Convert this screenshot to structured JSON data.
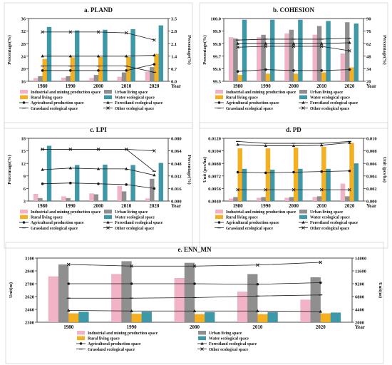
{
  "chart_data": [
    {
      "id": "a",
      "type": "bar",
      "title": "a. PLAND",
      "categories": [
        "1980",
        "1990",
        "2000",
        "2010",
        "2020"
      ],
      "xlabel": "Year",
      "ylabel_left": "Percentage(%)",
      "ylabel_right": "Percentage(%)",
      "ylim_left": [
        16,
        36
      ],
      "yticks_left": [
        16,
        20,
        24,
        28,
        32,
        36
      ],
      "ylim_right": [
        0,
        3.5
      ],
      "yticks_right": [
        0,
        0.7,
        1.4,
        2.1,
        2.8,
        3.5
      ],
      "bar_series": [
        {
          "name": "Industrial and mining production space",
          "values": [
            17.0,
            17.1,
            17.0,
            17.4,
            19.0
          ]
        },
        {
          "name": "Urban living space",
          "values": [
            17.6,
            17.6,
            18.0,
            18.8,
            20.5
          ]
        },
        {
          "name": "Rural living space",
          "values": [
            23.1,
            23.6,
            23.7,
            23.7,
            24.7
          ]
        },
        {
          "name": "Water ecological space",
          "values": [
            33.3,
            32.2,
            32.4,
            32.6,
            33.8
          ]
        }
      ],
      "line_series": [
        {
          "name": "Agricultural production space",
          "axis": "right",
          "values": [
            0.6,
            0.6,
            0.6,
            0.6,
            0.95
          ]
        },
        {
          "name": "Forestland ecological space",
          "axis": "right",
          "values": [
            1.4,
            1.4,
            1.4,
            1.4,
            1.45
          ]
        },
        {
          "name": "Grassland ecological space",
          "axis": "right",
          "values": [
            0.85,
            0.85,
            0.85,
            0.85,
            0.5
          ]
        },
        {
          "name": "Other ecological space",
          "axis": "right",
          "values": [
            2.75,
            2.75,
            2.75,
            2.7,
            2.3
          ]
        }
      ]
    },
    {
      "id": "b",
      "type": "bar",
      "title": "b. COHESION",
      "categories": [
        "1980",
        "1990",
        "2000",
        "2010",
        "2020"
      ],
      "xlabel": "Year",
      "ylabel_left": "Percentage(%)",
      "ylabel_right": "Percentage(%)",
      "ylim_left": [
        99.5,
        100.0
      ],
      "yticks_left": [
        99.5,
        99.6,
        99.7,
        99.8,
        99.9,
        100.0
      ],
      "ylim_right": [
        20,
        90
      ],
      "yticks_right": [
        20,
        34,
        48,
        62,
        76,
        90
      ],
      "bar_series": [
        {
          "name": "Industrial and mining production space",
          "values": [
            99.85,
            99.85,
            99.88,
            99.87,
            99.72
          ]
        },
        {
          "name": "Urban living space",
          "values": [
            99.84,
            99.87,
            99.91,
            99.94,
            99.97
          ]
        },
        {
          "name": "Rural living space",
          "values": [
            99.55,
            99.56,
            99.56,
            99.57,
            99.61
          ]
        },
        {
          "name": "Water ecological space",
          "values": [
            99.99,
            99.99,
            99.99,
            99.98,
            99.96
          ]
        }
      ],
      "line_series": [
        {
          "name": "Agricultural production space",
          "axis": "right",
          "values": [
            31,
            33,
            32,
            32,
            33
          ]
        },
        {
          "name": "Forestland ecological space",
          "axis": "right",
          "values": [
            62,
            62,
            62,
            62,
            63
          ]
        },
        {
          "name": "Grassland ecological space",
          "axis": "right",
          "values": [
            66,
            67,
            67,
            67,
            68
          ]
        },
        {
          "name": "Other ecological space",
          "axis": "right",
          "values": [
            58,
            59,
            59,
            59,
            54
          ]
        }
      ]
    },
    {
      "id": "c",
      "type": "bar",
      "title": "c. LPI",
      "categories": [
        "1980",
        "1990",
        "2000",
        "2010",
        "2020"
      ],
      "xlabel": "Year",
      "ylabel_left": "Percentage(%)",
      "ylabel_right": "Percentage(%)",
      "ylim_left": [
        3,
        18
      ],
      "yticks_left": [
        3,
        6,
        9,
        12,
        15,
        18
      ],
      "ylim_right": [
        0,
        0.08
      ],
      "yticks_right": [
        0,
        0.016,
        0.032,
        0.048,
        0.064,
        0.08
      ],
      "bar_series": [
        {
          "name": "Industrial and mining production space",
          "values": [
            4.7,
            4.1,
            4.8,
            6.6,
            3.6
          ]
        },
        {
          "name": "Urban living space",
          "values": [
            3.7,
            3.7,
            4.6,
            5.3,
            8.3
          ]
        },
        {
          "name": "Rural living space",
          "values": [
            0.1,
            0.1,
            0.1,
            0.1,
            0.1
          ]
        },
        {
          "name": "Water ecological space",
          "values": [
            16.2,
            11.6,
            11.7,
            11.6,
            12.1
          ]
        }
      ],
      "line_series": [
        {
          "name": "Agricultural production space",
          "axis": "right",
          "values": [
            0.022,
            0.023,
            0.022,
            0.021,
            0.016
          ]
        },
        {
          "name": "Forestland ecological space",
          "axis": "right",
          "values": [
            0.04,
            0.042,
            0.041,
            0.041,
            0.033
          ]
        },
        {
          "name": "Grassland ecological space",
          "axis": "right",
          "values": [
            0.066,
            0.066,
            0.066,
            0.066,
            0.038
          ]
        },
        {
          "name": "Other ecological space",
          "axis": "right",
          "values": [
            0.066,
            0.066,
            0.066,
            0.066,
            0.064
          ]
        }
      ]
    },
    {
      "id": "d",
      "type": "bar",
      "title": "d. PD",
      "categories": [
        "1980",
        "1990",
        "2000",
        "2010",
        "2020"
      ],
      "xlabel": "Year",
      "ylabel_left": "Unit (pcs/ha)",
      "ylabel_right": "Unit (pcs/ha)",
      "ylim_left": [
        0.004,
        0.012
      ],
      "yticks_left": [
        0.004,
        0.0056,
        0.0072,
        0.0088,
        0.0104,
        0.012
      ],
      "ylim_right": [
        0,
        0.01
      ],
      "yticks_right": [
        0,
        0.002,
        0.004,
        0.006,
        0.008,
        0.01
      ],
      "bar_series": [
        {
          "name": "Industrial and mining production space",
          "values": [
            0.0043,
            0.0044,
            0.0044,
            0.0045,
            0.0062
          ]
        },
        {
          "name": "Urban living space",
          "values": [
            0.0045,
            0.0045,
            0.0045,
            0.0046,
            0.0046
          ]
        },
        {
          "name": "Rural living space",
          "values": [
            0.0107,
            0.0107,
            0.0108,
            0.0109,
            0.0114
          ]
        },
        {
          "name": "Water ecological space",
          "values": [
            0.0081,
            0.008,
            0.0081,
            0.0081,
            0.0088
          ]
        }
      ],
      "line_series": [
        {
          "name": "Agricultural production space",
          "axis": "right",
          "values": [
            0.0046,
            0.0045,
            0.0046,
            0.0047,
            0.0048
          ]
        },
        {
          "name": "Forestland ecological space",
          "axis": "right",
          "values": [
            0.009,
            0.0088,
            0.0088,
            0.0089,
            0.0093
          ]
        },
        {
          "name": "Grassland ecological space",
          "axis": "right",
          "values": [
            0.0095,
            0.0092,
            0.0092,
            0.0092,
            0.0095
          ]
        },
        {
          "name": "Other ecological space",
          "axis": "right",
          "values": [
            0.0018,
            0.0018,
            0.0018,
            0.0018,
            0.0018
          ]
        }
      ]
    },
    {
      "id": "e",
      "type": "bar",
      "title": "e. ENN_MN",
      "categories": [
        "1980",
        "1990",
        "2000",
        "2010",
        "2020"
      ],
      "xlabel": "Year",
      "ylabel_left": "Unit(m)",
      "ylabel_right": "Unit(m)",
      "ylim_left": [
        2300,
        3100
      ],
      "yticks_left": [
        2300,
        2460,
        2620,
        2780,
        2940,
        3100
      ],
      "ylim_right": [
        2000,
        14000
      ],
      "yticks_right": [
        2000,
        4400,
        6800,
        9200,
        11600,
        14000
      ],
      "bar_series": [
        {
          "name": "Industrial and mining production space",
          "values": [
            2870,
            2900,
            2850,
            2680,
            2580
          ]
        },
        {
          "name": "Urban living space",
          "values": [
            3020,
            3060,
            3040,
            2900,
            2860
          ]
        },
        {
          "name": "Rural living space",
          "values": [
            2410,
            2405,
            2400,
            2400,
            2410
          ]
        },
        {
          "name": "Water ecological space",
          "values": [
            2430,
            2430,
            2425,
            2425,
            2420
          ]
        }
      ],
      "line_series": [
        {
          "name": "Agricultural production space",
          "axis": "right",
          "values": [
            9200,
            9200,
            9200,
            9100,
            9400
          ]
        },
        {
          "name": "Forestland ecological space",
          "axis": "right",
          "values": [
            4200,
            4100,
            4100,
            4100,
            4000
          ]
        },
        {
          "name": "Grassland ecological space",
          "axis": "right",
          "values": [
            6500,
            6500,
            6600,
            6900,
            7100
          ]
        },
        {
          "name": "Other ecological space",
          "axis": "right",
          "values": [
            12800,
            12500,
            12500,
            12700,
            13200
          ]
        }
      ]
    }
  ],
  "style": {
    "bar_colors": [
      "#f2b3c6",
      "#8f8f8f",
      "#f4b01e",
      "#3d98a8"
    ],
    "line_color": "#1a1a1a",
    "line_markers": [
      "dot",
      "triangle",
      "line",
      "x"
    ],
    "frame_color": "#cfcfcf"
  }
}
